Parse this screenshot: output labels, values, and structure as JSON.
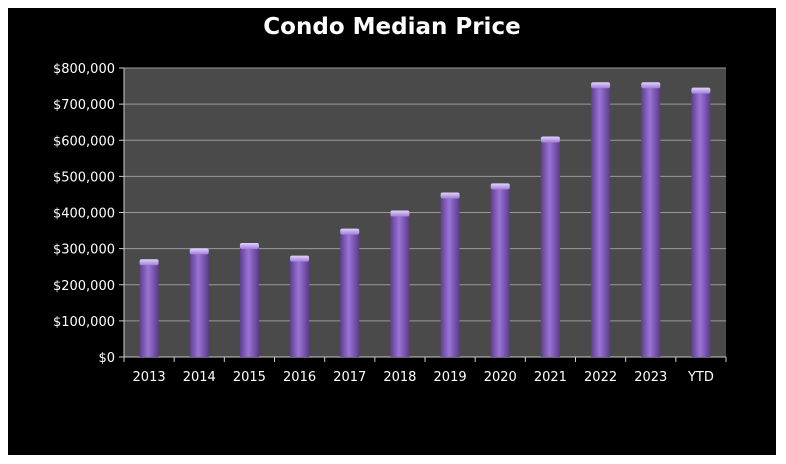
{
  "chart_data": {
    "type": "bar",
    "title": "Condo Median Price",
    "xlabel": "",
    "ylabel": "",
    "categories": [
      "2013",
      "2014",
      "2015",
      "2016",
      "2017",
      "2018",
      "2019",
      "2020",
      "2021",
      "2022",
      "2023",
      "YTD"
    ],
    "values": [
      265000,
      295000,
      310000,
      275000,
      350000,
      400000,
      450000,
      475000,
      605000,
      755000,
      755000,
      740000
    ],
    "ylim": [
      0,
      800000
    ],
    "yticks": [
      0,
      100000,
      200000,
      300000,
      400000,
      500000,
      600000,
      700000,
      800000
    ],
    "ytick_labels": [
      "$0",
      "$100,000",
      "$200,000",
      "$300,000",
      "$400,000",
      "$500,000",
      "$600,000",
      "$700,000",
      "$800,000"
    ],
    "grid": true,
    "colors": {
      "bar": "#8a63c4",
      "bar_top": "#b89ae8",
      "plot_bg": "#4a4a4a",
      "gridline": "#9a9a9a",
      "background": "#000000"
    }
  }
}
